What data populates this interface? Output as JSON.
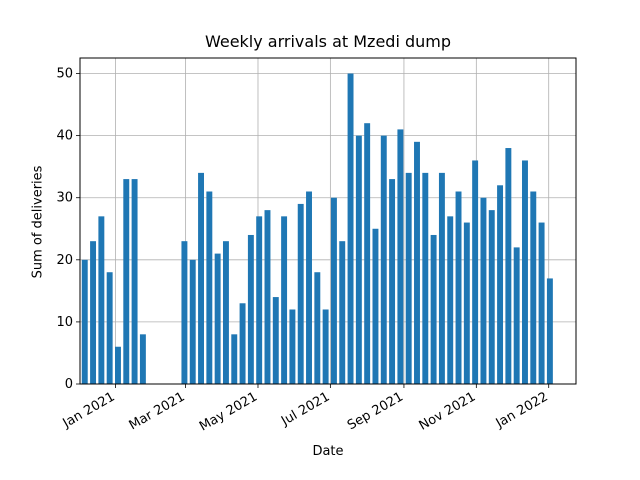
{
  "chart_data": {
    "type": "bar",
    "title": "Weekly arrivals at Mzedi dump",
    "xlabel": "Date",
    "ylabel": "Sum of deliveries",
    "ylim": [
      0,
      52.5
    ],
    "yticks": [
      0,
      10,
      20,
      30,
      40,
      50
    ],
    "xlim": [
      "2020-12-02",
      "2022-01-24"
    ],
    "xticks": [
      {
        "date": "2021-01-01",
        "label": "Jan 2021"
      },
      {
        "date": "2021-03-01",
        "label": "Mar 2021"
      },
      {
        "date": "2021-05-01",
        "label": "May 2021"
      },
      {
        "date": "2021-07-01",
        "label": "Jul 2021"
      },
      {
        "date": "2021-09-01",
        "label": "Sep 2021"
      },
      {
        "date": "2021-11-01",
        "label": "Nov 2021"
      },
      {
        "date": "2022-01-01",
        "label": "Jan 2022"
      }
    ],
    "grid": true,
    "bar_color": "#1f77b4",
    "x": [
      "2020-12-06",
      "2020-12-13",
      "2020-12-20",
      "2020-12-27",
      "2021-01-03",
      "2021-01-10",
      "2021-01-17",
      "2021-01-24",
      "2021-02-28",
      "2021-03-07",
      "2021-03-14",
      "2021-03-21",
      "2021-03-28",
      "2021-04-04",
      "2021-04-11",
      "2021-04-18",
      "2021-04-25",
      "2021-05-02",
      "2021-05-09",
      "2021-05-16",
      "2021-05-23",
      "2021-05-30",
      "2021-06-06",
      "2021-06-13",
      "2021-06-20",
      "2021-06-27",
      "2021-07-04",
      "2021-07-11",
      "2021-07-18",
      "2021-07-25",
      "2021-08-01",
      "2021-08-08",
      "2021-08-15",
      "2021-08-22",
      "2021-08-29",
      "2021-09-05",
      "2021-09-12",
      "2021-09-19",
      "2021-09-26",
      "2021-10-03",
      "2021-10-10",
      "2021-10-17",
      "2021-10-24",
      "2021-10-31",
      "2021-11-07",
      "2021-11-14",
      "2021-11-21",
      "2021-11-28",
      "2021-12-05",
      "2021-12-12",
      "2021-12-19",
      "2021-12-26",
      "2022-01-02"
    ],
    "values": [
      20,
      23,
      27,
      18,
      6,
      33,
      33,
      8,
      23,
      20,
      34,
      31,
      21,
      23,
      8,
      13,
      24,
      27,
      28,
      14,
      27,
      12,
      29,
      31,
      18,
      12,
      30,
      23,
      50,
      40,
      42,
      25,
      40,
      33,
      41,
      34,
      39,
      34,
      24,
      34,
      27,
      31,
      26,
      36,
      30,
      28,
      32,
      38,
      22,
      36,
      31,
      26,
      17
    ]
  }
}
